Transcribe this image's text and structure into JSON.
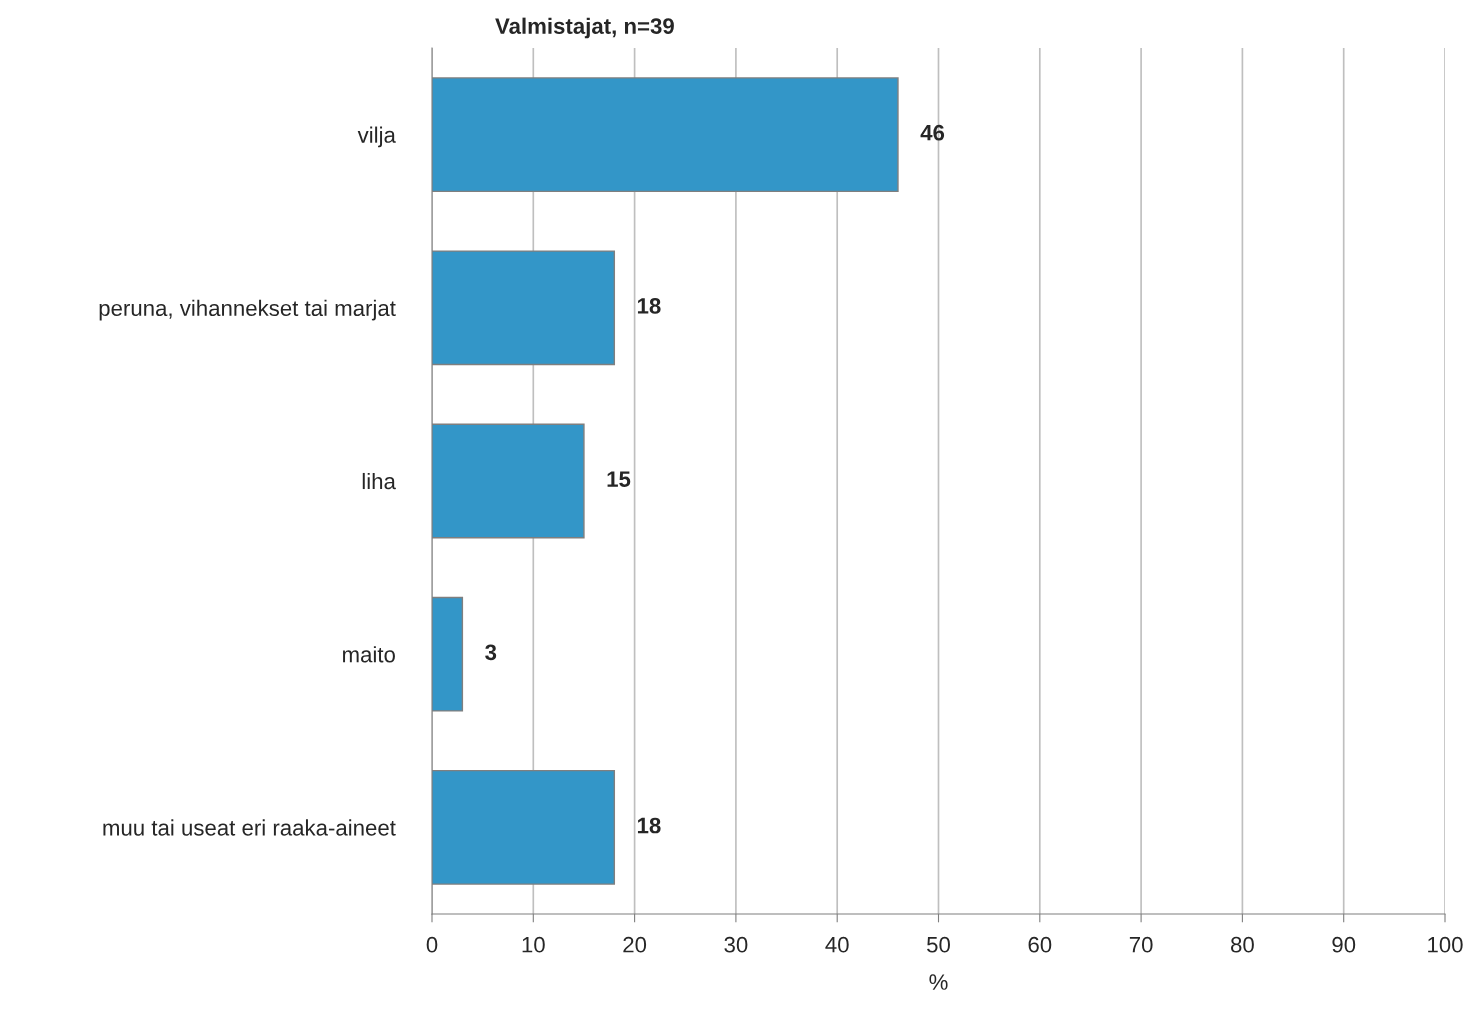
{
  "chart_data": {
    "type": "bar",
    "orientation": "horizontal",
    "title": "Valmistajat, n=39",
    "xlabel": "%",
    "categories": [
      "vilja",
      "peruna, vihannekset tai marjat",
      "liha",
      "maito",
      "muu tai useat eri raaka-aineet"
    ],
    "values": [
      46,
      18,
      15,
      3,
      18
    ],
    "color": "#3396c8",
    "xlim": [
      0,
      100
    ],
    "xticks": [
      0,
      10,
      20,
      30,
      40,
      50,
      60,
      70,
      80,
      90,
      100
    ],
    "grid": "x",
    "data_labels": true
  }
}
